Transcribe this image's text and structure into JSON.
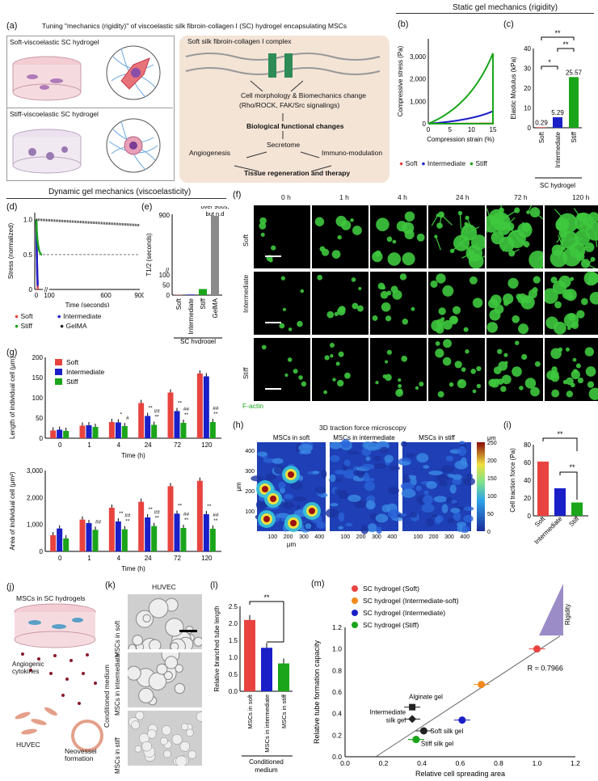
{
  "panel_letters": {
    "a": "(a)",
    "b": "(b)",
    "c": "(c)",
    "d": "(d)",
    "e": "(e)",
    "f": "(f)",
    "g": "(g)",
    "h": "(h)",
    "i": "(i)",
    "j": "(j)",
    "k": "(k)",
    "l": "(l)",
    "m": "(m)"
  },
  "panel_a": {
    "title": "Tuning \"mechanics (rigidity)\" of viscoelastic silk fibroin-collagen I (SC) hydrogel encapsulating MSCs",
    "soft_label": "Soft-viscoelastic SC hydrogel",
    "stiff_label": "Stiff-viscoelastic SC hydrogel",
    "complex_label": "Soft silk fibroin-collagen I complex",
    "morph": "Cell morphology & Biomechanics change",
    "signal": "(Rho/ROCK, FAK/Src signalings)",
    "bio": "Biological functional changes",
    "secretome": "Secretome",
    "angio": "Angiogenesis",
    "immuno": "Immuno-modulation",
    "tissue": "Tissue regeneration and therapy"
  },
  "section_static": "Static gel mechanics (rigidity)",
  "section_dynamic": "Dynamic gel mechanics (viscoelasticity)",
  "legend": {
    "soft": "Soft",
    "intermediate": "Intermediate",
    "stiff": "Stiff",
    "gelma": "GelMA"
  },
  "colors": {
    "soft": "#e8433f",
    "intermediate": "#1a1fc8",
    "stiff": "#1aa51a",
    "gelma": "#222222"
  },
  "chart_b": {
    "type": "line",
    "ylabel": "Compressive stress (Pa)",
    "xlabel": "Compression strain  (%)",
    "yticks": [
      "0",
      "1,000",
      "2,000",
      "3,000"
    ],
    "xticks": [
      "0",
      "5",
      "10",
      "15"
    ],
    "xlim": [
      0,
      15
    ],
    "ylim": [
      0,
      3800
    ],
    "series": [
      {
        "name": "Soft",
        "x": [
          0,
          15
        ],
        "y": [
          0,
          12
        ]
      },
      {
        "name": "Intermediate",
        "x": [
          0,
          15
        ],
        "y": [
          0,
          560
        ]
      },
      {
        "name": "Stiff",
        "x": [
          0,
          15
        ],
        "y": [
          0,
          3150
        ]
      }
    ]
  },
  "chart_c": {
    "type": "bar",
    "ylabel": "Elastic Modulus (kPa)",
    "categories": [
      "Soft",
      "Intermediate",
      "Stiff"
    ],
    "values": [
      0.29,
      5.29,
      25.57
    ],
    "value_labels": [
      "0.29",
      "5.29",
      "25.57"
    ],
    "yticks": [
      "0",
      "10",
      "20",
      "30",
      "40"
    ],
    "ylim": [
      0,
      40
    ],
    "sig": [
      "*",
      "**",
      "**"
    ],
    "group": "SC hydrogel"
  },
  "chart_d": {
    "type": "line",
    "ylabel": "Stress (normalized)",
    "xlabel": "Time (seconds)",
    "yticks": [
      "0",
      "0.5",
      "1.0"
    ],
    "xticks": [
      "0",
      "100",
      "600",
      "900"
    ],
    "series": [
      {
        "name": "Soft",
        "end": 0.0
      },
      {
        "name": "Intermediate",
        "end": 0.05
      },
      {
        "name": "Stiff",
        "end": 0.5
      },
      {
        "name": "GelMA",
        "end": 0.92
      }
    ]
  },
  "chart_e": {
    "type": "bar",
    "ylabel": "T1/2 (seconds)",
    "categories": [
      "Soft",
      "Intermediate",
      "Stiff",
      "GelMA"
    ],
    "values": [
      1.5,
      3,
      30,
      900
    ],
    "yticks": [
      "0",
      "50",
      "100",
      "900"
    ],
    "note": "over 900s, but n.d",
    "group": "SC hydrogel"
  },
  "panel_f": {
    "cols": [
      "0 h",
      "1 h",
      "4 h",
      "24 h",
      "72 h",
      "120 h"
    ],
    "rows": [
      "Soft",
      "Intermediate",
      "Stiff"
    ],
    "stain": "F-actin"
  },
  "chart_g1": {
    "type": "bar",
    "ylabel": "Length of individual cell (μm)",
    "xlabel": "Time (h)",
    "categories": [
      "0",
      "1",
      "4",
      "24",
      "72",
      "120"
    ],
    "yticks": [
      "0",
      "50",
      "100",
      "150",
      "200"
    ],
    "ylim": [
      0,
      200
    ],
    "series": [
      {
        "name": "Soft",
        "values": [
          19,
          31,
          40,
          87,
          113,
          160
        ]
      },
      {
        "name": "Intermediate",
        "values": [
          21,
          32,
          39,
          55,
          67,
          153
        ]
      },
      {
        "name": "Stiff",
        "values": [
          18,
          28,
          30,
          33,
          38,
          40
        ]
      }
    ],
    "marks": [
      {
        "cat": 2,
        "s": 1,
        "t": "*"
      },
      {
        "cat": 2,
        "s": 2,
        "t": "#"
      },
      {
        "cat": 3,
        "s": 1,
        "t": "**"
      },
      {
        "cat": 3,
        "s": 2,
        "t": "##\n**"
      },
      {
        "cat": 4,
        "s": 1,
        "t": "**"
      },
      {
        "cat": 4,
        "s": 2,
        "t": "##\n**"
      },
      {
        "cat": 5,
        "s": 2,
        "t": "##\n**"
      }
    ]
  },
  "chart_g2": {
    "type": "bar",
    "ylabel": "Area of individual cell (μm²)",
    "xlabel": "Time (h)",
    "categories": [
      "0",
      "1",
      "4",
      "24",
      "72",
      "120"
    ],
    "yticks": [
      "0",
      "1,000",
      "2,000",
      "3,000"
    ],
    "ylim": [
      0,
      3000
    ],
    "series": [
      {
        "name": "Soft",
        "values": [
          600,
          1180,
          1620,
          1840,
          2420,
          2620
        ]
      },
      {
        "name": "Intermediate",
        "values": [
          850,
          1050,
          1110,
          1260,
          1400,
          1380
        ]
      },
      {
        "name": "Stiff",
        "values": [
          480,
          800,
          820,
          940,
          870,
          840
        ]
      }
    ],
    "marks": [
      {
        "cat": 1,
        "s": 2,
        "t": "##"
      },
      {
        "cat": 2,
        "s": 1,
        "t": "**"
      },
      {
        "cat": 2,
        "s": 2,
        "t": "##\n**"
      },
      {
        "cat": 3,
        "s": 1,
        "t": "**"
      },
      {
        "cat": 3,
        "s": 2,
        "t": "##\n**"
      },
      {
        "cat": 4,
        "s": 1,
        "t": "**"
      },
      {
        "cat": 4,
        "s": 2,
        "t": "##\n**"
      },
      {
        "cat": 5,
        "s": 1,
        "t": "**"
      },
      {
        "cat": 5,
        "s": 2,
        "t": "##\n**"
      }
    ]
  },
  "panel_h": {
    "title": "3D traction force microscopy",
    "maps": [
      "MSCs in soft",
      "MSCs in intermediate",
      "MSCs in stiff"
    ],
    "yticks": [
      "100",
      "200",
      "300",
      "400"
    ],
    "xticks": [
      "100",
      "200",
      "300",
      "400"
    ],
    "unit": "μm",
    "cbar": [
      "0",
      "50",
      "100",
      "150",
      "200",
      "250"
    ],
    "cbar_unit": "μm"
  },
  "chart_i": {
    "type": "bar",
    "ylabel": "Cell traction force (Pa)",
    "categories": [
      "Soft",
      "Intermediate",
      "Stiff"
    ],
    "values": [
      61,
      31,
      15
    ],
    "yticks": [
      "0",
      "20",
      "40",
      "60",
      "80"
    ],
    "ylim": [
      0,
      80
    ],
    "sig": [
      "**",
      "**"
    ]
  },
  "panel_j": {
    "title": "MSCs in SC hydrogels",
    "cyto": "Angiogenic\ncytokines",
    "huvec": "HUVEC",
    "neo": "Neovessel\nformation"
  },
  "panel_k": {
    "title": "HUVEC",
    "side": "Conditioned medium",
    "rows": [
      "MSCs in soft",
      "MSCs in intermediate",
      "MSCs in stiff"
    ]
  },
  "chart_l": {
    "type": "bar",
    "ylabel": "Relative branched tube length",
    "categories": [
      "MSCs in soft",
      "MSCs in intermediate",
      "MSCs in stiff"
    ],
    "values": [
      2.1,
      1.28,
      0.82
    ],
    "yticks": [
      "0.0",
      "0.5",
      "1.0",
      "1.5",
      "2.0",
      "2.5"
    ],
    "ylim": [
      0,
      2.5
    ],
    "sig": "**",
    "group": "Conditioned\nmedium"
  },
  "chart_m": {
    "type": "scatter",
    "xlabel": "Relative cell spreading area",
    "ylabel": "Relative tube formation capacity",
    "xticks": [
      "0.0",
      "0.2",
      "0.4",
      "0.6",
      "0.8",
      "1.0",
      "1.2"
    ],
    "yticks": [
      "0.0",
      "0.2",
      "0.4",
      "0.6",
      "0.8",
      "1.0",
      "1.2"
    ],
    "xlim": [
      0,
      1.2
    ],
    "ylim": [
      0,
      1.2
    ],
    "r": "R = 0.7966",
    "rigidity": "Rigidity",
    "legend": [
      "SC hydrogel (Soft)",
      "SC hydrogel (Intermediate-soft)",
      "SC hydrogel (Intermediate)",
      "SC hydrogel (Stiff)"
    ],
    "legend_colors": [
      "#e8433f",
      "#f08a1c",
      "#1a1fc8",
      "#1aa51a"
    ],
    "points": [
      {
        "x": 1.0,
        "y": 1.0,
        "c": "#e8433f",
        "shape": "circle"
      },
      {
        "x": 0.71,
        "y": 0.67,
        "c": "#f08a1c",
        "shape": "circle"
      },
      {
        "x": 0.61,
        "y": 0.34,
        "c": "#1a1fc8",
        "shape": "circle"
      },
      {
        "x": 0.37,
        "y": 0.16,
        "c": "#1aa51a",
        "shape": "circle"
      },
      {
        "x": 0.35,
        "y": 0.46,
        "c": "#222222",
        "shape": "square",
        "label": "Alginate gel"
      },
      {
        "x": 0.35,
        "y": 0.35,
        "c": "#222222",
        "shape": "diamond",
        "label": "Intermediate\nsilk gel"
      },
      {
        "x": 0.41,
        "y": 0.24,
        "c": "#222222",
        "shape": "circle",
        "label": "Soft silk gel"
      },
      {
        "x": 0.37,
        "y": 0.16,
        "c": "#1aa51a",
        "shape": "circle",
        "label": "Stiff silk gel"
      }
    ]
  }
}
